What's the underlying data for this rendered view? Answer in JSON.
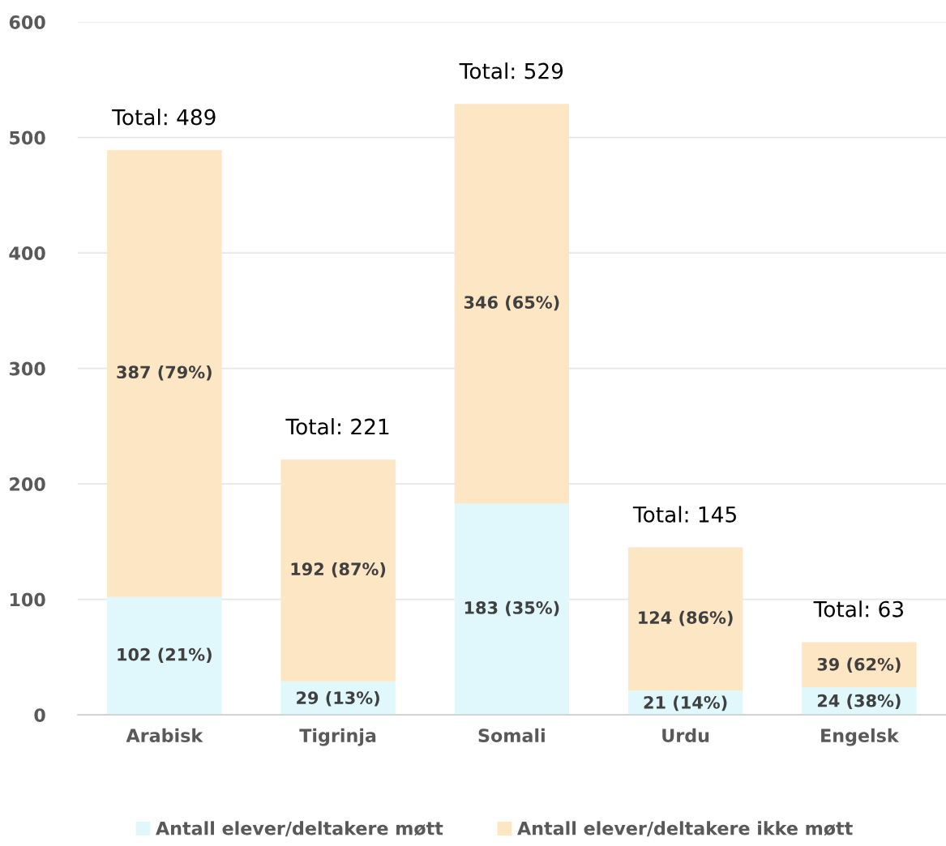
{
  "chart_data": {
    "type": "bar",
    "stacked": true,
    "categories": [
      "Arabisk",
      "Tigrinja",
      "Somali",
      "Urdu",
      "Engelsk"
    ],
    "series": [
      {
        "name": "Antall elever/deltakere møtt",
        "color": "#e0f8fc",
        "values": [
          102,
          29,
          183,
          21,
          24
        ],
        "value_labels": [
          "102 (21%)",
          "29 (13%)",
          "183 (35%)",
          "21 (14%)",
          "24 (38%)"
        ]
      },
      {
        "name": "Antall elever/deltakere ikke møtt",
        "color": "#fce6c3",
        "values": [
          387,
          192,
          346,
          124,
          39
        ],
        "value_labels": [
          "387 (79%)",
          "192 (87%)",
          "346 (65%)",
          "124 (86%)",
          "39 (62%)"
        ]
      }
    ],
    "totals": [
      "Total: 489",
      "Total: 221",
      "Total: 529",
      "Total: 145",
      "Total: 63"
    ],
    "ylim": [
      0,
      600
    ],
    "yticks": [
      0,
      100,
      200,
      300,
      400,
      500,
      600
    ],
    "grid": "y",
    "legend": "bottom"
  }
}
